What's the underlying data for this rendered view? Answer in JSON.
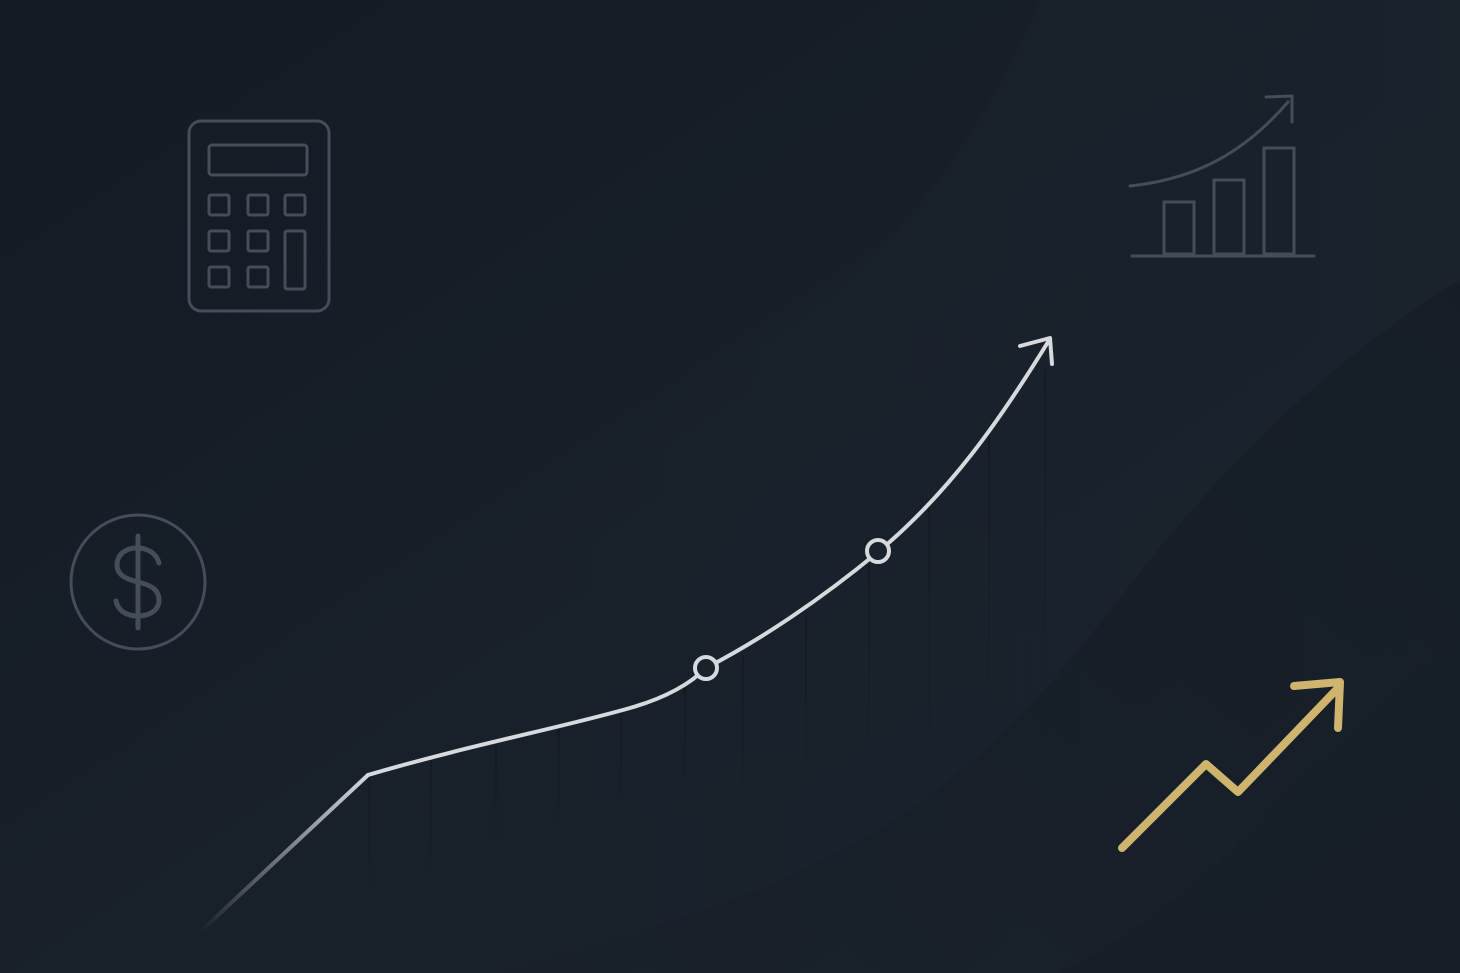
{
  "colors": {
    "background_dark": "#121820",
    "background_mid": "#1a222c",
    "icon_outline": "#434e59",
    "trend_line": "#d6dadd",
    "accent_gold": "#cfb46e"
  },
  "icons": {
    "calculator": "calculator-icon",
    "dollar": "dollar-coin-icon",
    "bar_chart": "bar-chart-growth-icon",
    "trend_up": "trend-up-arrow-icon",
    "main_growth_curve": "growth-curve-arrow"
  },
  "curve_markers": 2
}
